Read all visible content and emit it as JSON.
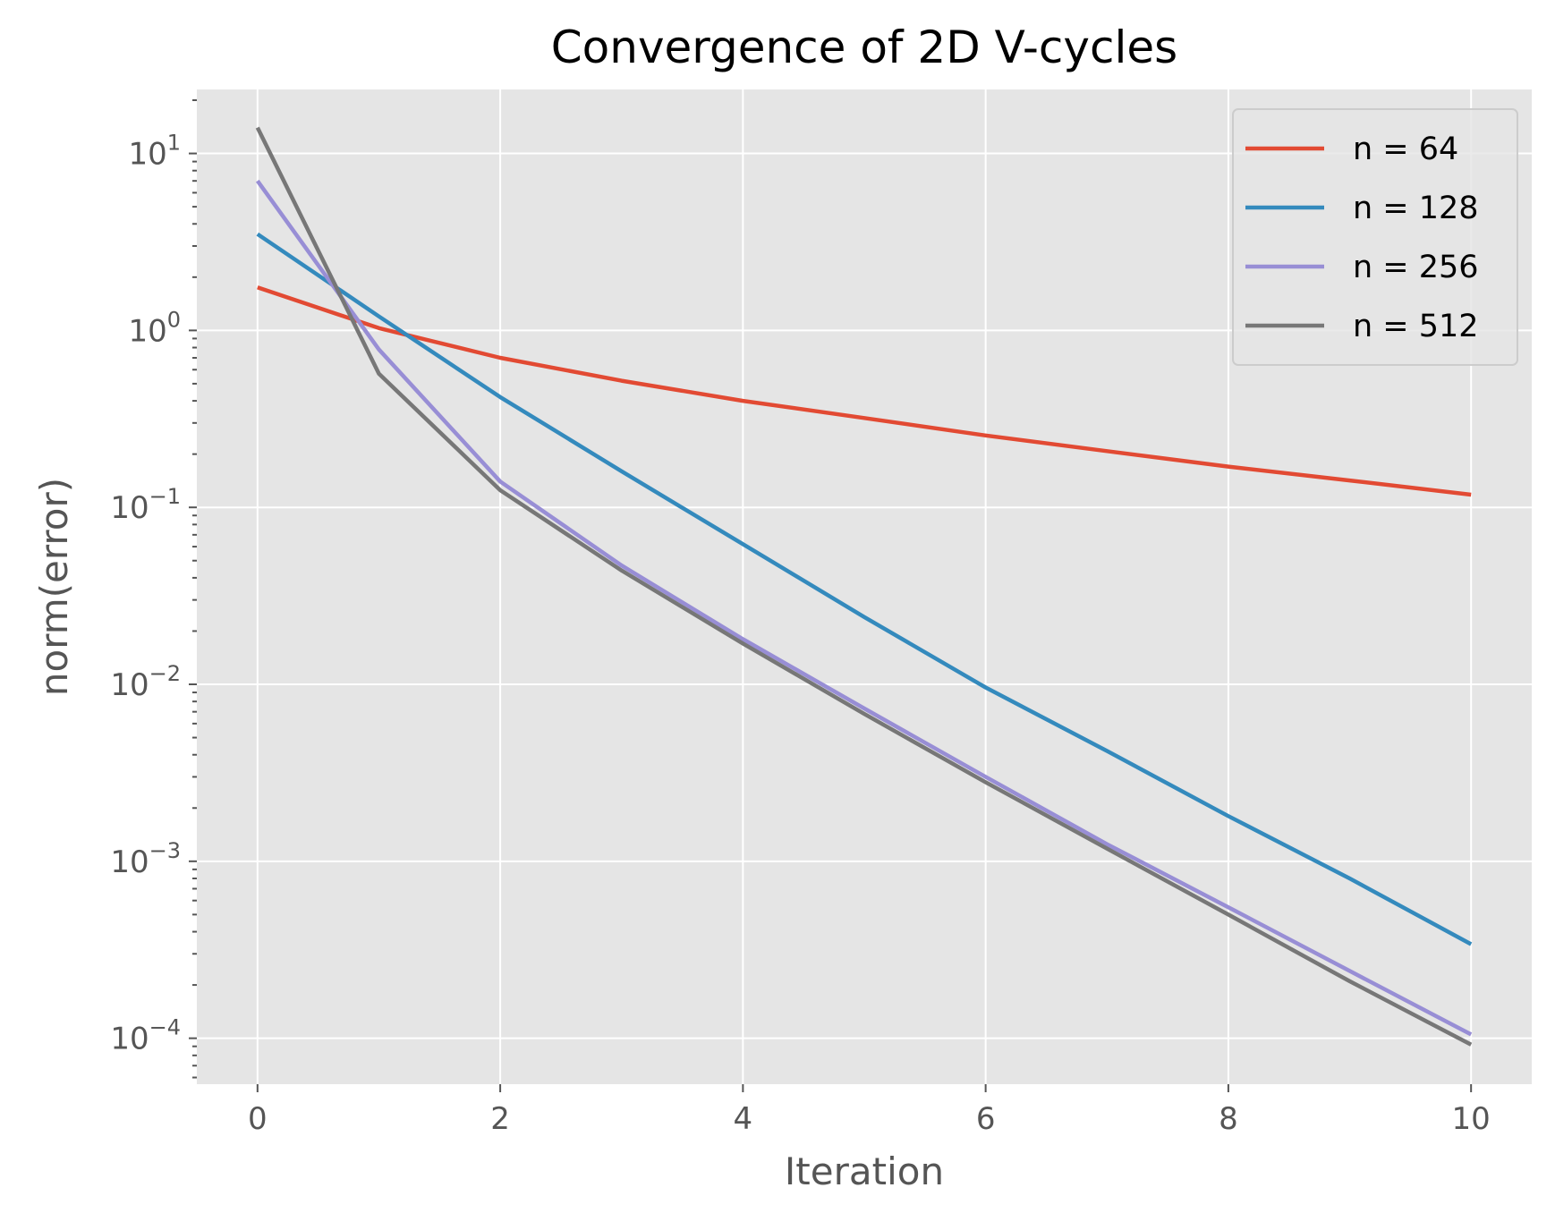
{
  "chart_data": {
    "type": "line",
    "title": "Convergence of 2D V-cycles",
    "xlabel": "Iteration",
    "ylabel": "norm(error)",
    "xlim": [
      -0.5,
      10.5
    ],
    "ylim": [
      5.5e-05,
      23
    ],
    "yscale": "log",
    "grid": true,
    "legend_position": "top-right",
    "x_ticks": [
      {
        "value": 0,
        "label": "0"
      },
      {
        "value": 2,
        "label": "2"
      },
      {
        "value": 4,
        "label": "4"
      },
      {
        "value": 6,
        "label": "6"
      },
      {
        "value": 8,
        "label": "8"
      },
      {
        "value": 10,
        "label": "10"
      }
    ],
    "y_ticks": [
      {
        "value": 10,
        "base": "10",
        "exp": "1"
      },
      {
        "value": 1,
        "base": "10",
        "exp": "0"
      },
      {
        "value": 0.1,
        "base": "10",
        "exp": "−1"
      },
      {
        "value": 0.01,
        "base": "10",
        "exp": "−2"
      },
      {
        "value": 0.001,
        "base": "10",
        "exp": "−3"
      },
      {
        "value": 0.0001,
        "base": "10",
        "exp": "−4"
      }
    ],
    "x": [
      0,
      1,
      2,
      3,
      4,
      5,
      6,
      7,
      8,
      9,
      10
    ],
    "series": [
      {
        "name": "n = 64",
        "color": "#E24A33",
        "values": [
          1.75,
          1.03,
          0.7,
          0.52,
          0.4,
          0.32,
          0.255,
          0.208,
          0.17,
          0.142,
          0.118
        ]
      },
      {
        "name": "n = 128",
        "color": "#348ABD",
        "values": [
          3.5,
          1.2,
          0.42,
          0.16,
          0.062,
          0.024,
          0.0096,
          0.0042,
          0.0018,
          0.0008,
          0.00034
        ]
      },
      {
        "name": "n = 256",
        "color": "#988ED5",
        "values": [
          7.0,
          0.78,
          0.14,
          0.047,
          0.018,
          0.0073,
          0.003,
          0.00125,
          0.00055,
          0.00024,
          0.000105
        ]
      },
      {
        "name": "n = 512",
        "color": "#777777",
        "values": [
          14.0,
          0.57,
          0.125,
          0.044,
          0.017,
          0.0068,
          0.0028,
          0.00118,
          0.0005,
          0.00021,
          9.2e-05
        ]
      }
    ]
  }
}
